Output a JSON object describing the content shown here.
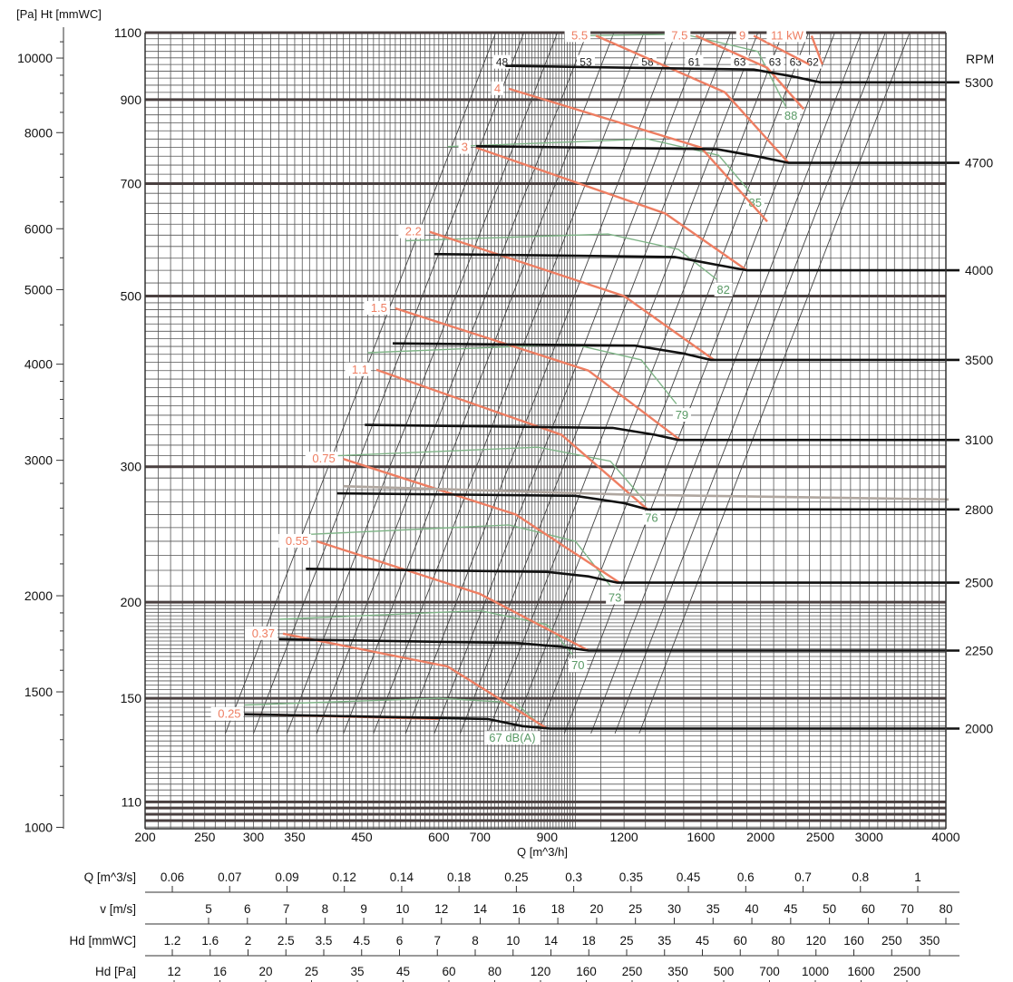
{
  "chart_data": {
    "type": "line",
    "left_axis_title": "[Pa] Ht [mmWC]",
    "x_axis_title": "Q [m^3/h]",
    "right_axis_title": "RPM",
    "x_scale": "log",
    "y_scale": "log",
    "xlim": [
      190,
      4000
    ],
    "ylim_mmwc": [
      100,
      1100
    ],
    "x_ticks": [
      200,
      250,
      300,
      350,
      450,
      600,
      700,
      900,
      1200,
      1600,
      2000,
      2500,
      3000,
      4000
    ],
    "x_tick_labels": [
      "200",
      "250",
      "300",
      "350",
      "450",
      "600",
      "700",
      "900",
      "1200",
      "1600",
      "2000",
      "2500",
      "3000",
      "4000"
    ],
    "y_mmwc_ticks": [
      110,
      150,
      200,
      300,
      500,
      700,
      900,
      1100
    ],
    "y_mmwc_tick_labels": [
      "110",
      "150",
      "200",
      "300",
      "500",
      "700",
      "900",
      "1100"
    ],
    "y_pa_ticks": [
      1000,
      1500,
      2000,
      3000,
      4000,
      5000,
      6000,
      8000,
      10000
    ],
    "y_pa_tick_labels": [
      "1000",
      "1500",
      "2000",
      "3000",
      "4000",
      "5000",
      "6000",
      "8000",
      "10000"
    ],
    "rpm_curves": [
      {
        "rpm": "2000",
        "label_y": 137,
        "points": [
          [
            290,
            143
          ],
          [
            720,
            141
          ],
          [
            820,
            138
          ],
          [
            910,
            137
          ],
          [
            4000,
            137
          ]
        ]
      },
      {
        "rpm": "2250",
        "label_y": 173,
        "points": [
          [
            330,
            179
          ],
          [
            800,
            177
          ],
          [
            950,
            175
          ],
          [
            1050,
            173
          ],
          [
            4000,
            173
          ]
        ]
      },
      {
        "rpm": "2500",
        "label_y": 212,
        "points": [
          [
            365,
            221
          ],
          [
            900,
            219
          ],
          [
            1050,
            216
          ],
          [
            1170,
            212
          ],
          [
            4000,
            212
          ]
        ]
      },
      {
        "rpm": "2800",
        "label_y": 264,
        "points": [
          [
            410,
            277
          ],
          [
            1000,
            275
          ],
          [
            1200,
            269
          ],
          [
            1310,
            264
          ],
          [
            4000,
            264
          ]
        ]
      },
      {
        "rpm": "3100",
        "label_y": 325,
        "points": [
          [
            455,
            340
          ],
          [
            1150,
            337
          ],
          [
            1350,
            330
          ],
          [
            1470,
            325
          ],
          [
            4000,
            325
          ]
        ]
      },
      {
        "rpm": "3500",
        "label_y": 413,
        "points": [
          [
            505,
            434
          ],
          [
            1250,
            431
          ],
          [
            1500,
            421
          ],
          [
            1660,
            413
          ],
          [
            4000,
            413
          ]
        ]
      },
      {
        "rpm": "4000",
        "label_y": 540,
        "points": [
          [
            590,
            567
          ],
          [
            1450,
            562
          ],
          [
            1700,
            549
          ],
          [
            1900,
            540
          ],
          [
            4000,
            540
          ]
        ]
      },
      {
        "rpm": "4700",
        "label_y": 745,
        "points": [
          [
            690,
            783
          ],
          [
            1700,
            776
          ],
          [
            2000,
            758
          ],
          [
            2220,
            745
          ],
          [
            4000,
            745
          ]
        ]
      },
      {
        "rpm": "5300",
        "label_y": 948,
        "points": [
          [
            770,
            996
          ],
          [
            1950,
            985
          ],
          [
            2250,
            965
          ],
          [
            2500,
            948
          ],
          [
            4000,
            948
          ]
        ]
      }
    ],
    "power_curves": [
      {
        "label": "0.25",
        "points": [
          [
            295,
            143
          ],
          [
            600,
            141
          ]
        ]
      },
      {
        "label": "0.37",
        "points": [
          [
            335,
            182
          ],
          [
            620,
            165
          ],
          [
            900,
            137
          ]
        ]
      },
      {
        "label": "0.55",
        "points": [
          [
            380,
            240
          ],
          [
            700,
            205
          ],
          [
            1050,
            173
          ]
        ]
      },
      {
        "label": "0.75",
        "points": [
          [
            420,
            307
          ],
          [
            800,
            260
          ],
          [
            1180,
            212
          ]
        ]
      },
      {
        "label": "1.1",
        "points": [
          [
            475,
            401
          ],
          [
            950,
            330
          ],
          [
            1310,
            264
          ]
        ]
      },
      {
        "label": "1.5",
        "points": [
          [
            510,
            482
          ],
          [
            1050,
            400
          ],
          [
            1480,
            325
          ]
        ]
      },
      {
        "label": "2.2",
        "points": [
          [
            580,
            606
          ],
          [
            1200,
            500
          ],
          [
            1680,
            413
          ]
        ]
      },
      {
        "label": "3",
        "points": [
          [
            690,
            780
          ],
          [
            1400,
            640
          ],
          [
            1900,
            540
          ]
        ]
      },
      {
        "label": "4",
        "points": [
          [
            780,
            930
          ],
          [
            1600,
            780
          ],
          [
            2050,
            625
          ]
        ]
      },
      {
        "label": "5.5",
        "points": [
          [
            1080,
            1090
          ],
          [
            1750,
            920
          ],
          [
            2220,
            745
          ]
        ]
      },
      {
        "label": "7.5",
        "points": [
          [
            1570,
            1090
          ],
          [
            2050,
            990
          ],
          [
            2350,
            875
          ]
        ]
      },
      {
        "label": "9",
        "points": [
          [
            1950,
            1090
          ],
          [
            2400,
            1000
          ]
        ]
      },
      {
        "label": "11 kW",
        "points": [
          [
            2420,
            1090
          ],
          [
            2520,
            1000
          ]
        ]
      }
    ],
    "noise_curves": [
      {
        "label": "67 dB(A)",
        "label_x": 790,
        "label_y": 132,
        "points": [
          [
            290,
            147
          ],
          [
            600,
            150
          ],
          [
            800,
            148
          ],
          [
            880,
            138
          ]
        ]
      },
      {
        "label": "70",
        "label_x": 1010,
        "label_y": 164,
        "points": [
          [
            330,
            190
          ],
          [
            700,
            195
          ],
          [
            900,
            187
          ],
          [
            990,
            171
          ]
        ]
      },
      {
        "label": "73",
        "label_x": 1160,
        "label_y": 201,
        "points": [
          [
            370,
            245
          ],
          [
            780,
            252
          ],
          [
            1000,
            240
          ],
          [
            1140,
            210
          ]
        ]
      },
      {
        "label": "76",
        "label_x": 1330,
        "label_y": 255,
        "points": [
          [
            410,
            310
          ],
          [
            870,
            318
          ],
          [
            1140,
            305
          ],
          [
            1300,
            270
          ]
        ]
      },
      {
        "label": "79",
        "label_x": 1490,
        "label_y": 347,
        "points": [
          [
            460,
            422
          ],
          [
            990,
            433
          ],
          [
            1280,
            413
          ],
          [
            1460,
            362
          ]
        ]
      },
      {
        "label": "82",
        "label_x": 1740,
        "label_y": 505,
        "points": [
          [
            530,
            590
          ],
          [
            1130,
            602
          ],
          [
            1470,
            575
          ],
          [
            1700,
            525
          ]
        ]
      },
      {
        "label": "85",
        "label_x": 1960,
        "label_y": 655,
        "points": [
          [
            620,
            782
          ],
          [
            1310,
            800
          ],
          [
            1710,
            762
          ],
          [
            1930,
            680
          ]
        ]
      },
      {
        "label": "88",
        "label_x": 2240,
        "label_y": 850,
        "points": [
          [
            1000,
            1090
          ],
          [
            1500,
            1095
          ],
          [
            1980,
            1040
          ],
          [
            2200,
            880
          ]
        ]
      }
    ],
    "efficiency_labels": [
      "48",
      "53",
      "58",
      "61",
      "63",
      "63",
      "63",
      "62"
    ],
    "efficiency_label_x": [
      760,
      1040,
      1310,
      1560,
      1850,
      2110,
      2280,
      2430
    ],
    "efficiency_label_y": 985,
    "q_m3s_title": "Q [m^3/s]",
    "q_m3s_ticks": [
      "0.06",
      "0.07",
      "0.09",
      "0.12",
      "0.14",
      "0.18",
      "0.25",
      "0.3",
      "0.35",
      "0.45",
      "0.6",
      "0.7",
      "0.8",
      "1"
    ],
    "v_title": "v [m/s]",
    "v_ticks": [
      "5",
      "6",
      "7",
      "8",
      "9",
      "10",
      "12",
      "14",
      "16",
      "18",
      "20",
      "25",
      "30",
      "35",
      "40",
      "45",
      "50",
      "60",
      "70",
      "80"
    ],
    "hd_mmwc_title": "Hd [mmWC]",
    "hd_mmwc_ticks": [
      "1.2",
      "1.6",
      "2",
      "2.5",
      "3.5",
      "4.5",
      "6",
      "7",
      "8",
      "10",
      "14",
      "18",
      "25",
      "35",
      "45",
      "60",
      "80",
      "120",
      "160",
      "250",
      "350"
    ],
    "hd_pa_title": "Hd [Pa]",
    "hd_pa_ticks": [
      "12",
      "16",
      "20",
      "25",
      "35",
      "45",
      "60",
      "80",
      "120",
      "160",
      "250",
      "350",
      "500",
      "700",
      "1000",
      "1600",
      "2500"
    ]
  }
}
